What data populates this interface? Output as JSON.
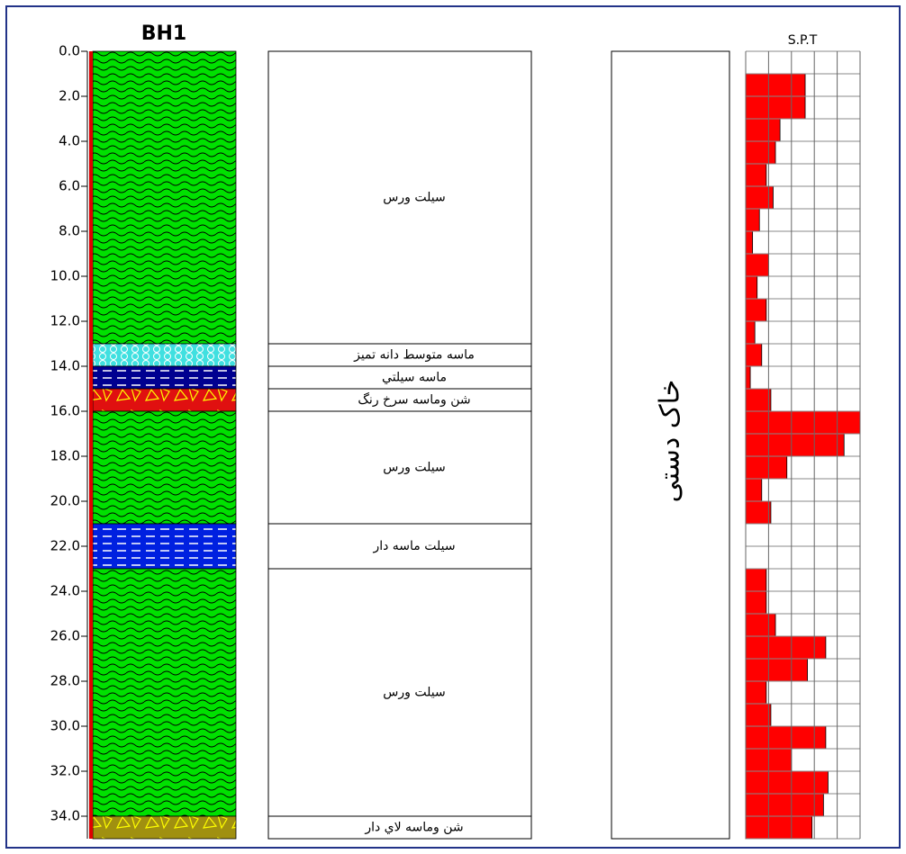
{
  "chart_data": {
    "type": "borehole-log",
    "title": "BH1",
    "ylim": [
      0,
      35
    ],
    "yticks": [
      {
        "value": 0,
        "label": "0.0"
      },
      {
        "value": 2,
        "label": "2.0"
      },
      {
        "value": 4,
        "label": "4.0"
      },
      {
        "value": 6,
        "label": "6.0"
      },
      {
        "value": 8,
        "label": "8.0"
      },
      {
        "value": 10,
        "label": "10.0"
      },
      {
        "value": 12,
        "label": "12.0"
      },
      {
        "value": 14,
        "label": "14.0"
      },
      {
        "value": 16,
        "label": "16.0"
      },
      {
        "value": 18,
        "label": "18.0"
      },
      {
        "value": 20,
        "label": "20.0"
      },
      {
        "value": 22,
        "label": "22.0"
      },
      {
        "value": 24,
        "label": "24.0"
      },
      {
        "value": 26,
        "label": "26.0"
      },
      {
        "value": 28,
        "label": "28.0"
      },
      {
        "value": 30,
        "label": "30.0"
      },
      {
        "value": 32,
        "label": "32.0"
      },
      {
        "value": 34,
        "label": "34.0"
      }
    ],
    "layers": [
      {
        "top": 0,
        "bottom": 13,
        "color": "#00e000",
        "pattern": "wavy",
        "label": "سيلت ورس"
      },
      {
        "top": 13,
        "bottom": 14,
        "color": "#40e0e0",
        "pattern": "circles",
        "label": "ماسه متوسط دانه تميز"
      },
      {
        "top": 14,
        "bottom": 15,
        "color": "#000090",
        "pattern": "dashes",
        "label": "ماسه سيلتي"
      },
      {
        "top": 15,
        "bottom": 16,
        "color": "#e01010",
        "pattern": "gravel",
        "label": "شن وماسه سرخ رنگ"
      },
      {
        "top": 16,
        "bottom": 21,
        "color": "#00e000",
        "pattern": "wavy",
        "label": "سيلت ورس"
      },
      {
        "top": 21,
        "bottom": 23,
        "color": "#0020e0",
        "pattern": "dashes",
        "label": "سيلت ماسه دار"
      },
      {
        "top": 23,
        "bottom": 34,
        "color": "#00e000",
        "pattern": "wavy",
        "label": "سيلت ورس"
      },
      {
        "top": 34,
        "bottom": 35,
        "color": "#a09010",
        "pattern": "gravel",
        "label": "شن وماسه لاي دار"
      }
    ],
    "note": "خاک دستی",
    "spt": {
      "title": "S.P.T",
      "color": "#ff0000",
      "xlim": [
        0,
        50
      ],
      "xticks": [
        0,
        10,
        20,
        30,
        40,
        50
      ],
      "bins": [
        0,
        1,
        2,
        3,
        4,
        5,
        6,
        7,
        8,
        9,
        10,
        11,
        12,
        13,
        14,
        15,
        16,
        17,
        18,
        19,
        20,
        21,
        22,
        23,
        24,
        25,
        26,
        27,
        28,
        29,
        30,
        31,
        32,
        33,
        34,
        35
      ],
      "values": [
        0,
        26,
        26,
        15,
        13,
        9,
        12,
        6,
        3,
        10,
        5,
        9,
        4,
        7,
        2,
        11,
        50,
        43,
        18,
        7,
        11,
        0,
        0,
        9,
        9,
        13,
        35,
        27,
        9,
        11,
        35,
        20,
        36,
        34,
        29
      ]
    }
  }
}
